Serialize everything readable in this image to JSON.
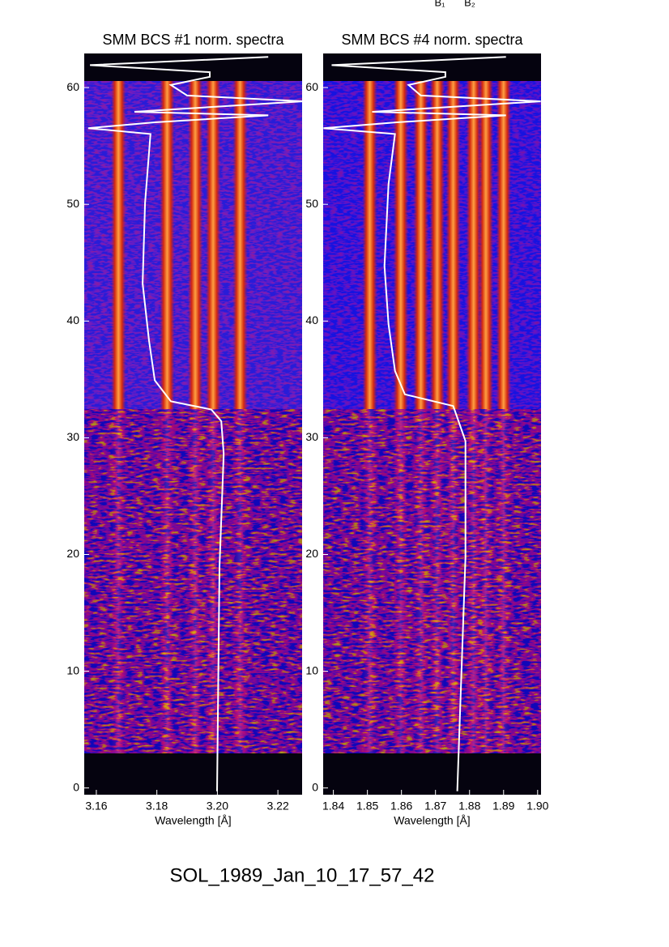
{
  "figure_title": "SOL_1989_Jan_10_17_57_42",
  "annotations": [
    "B₁",
    "B₂"
  ],
  "chart_data": [
    {
      "type": "spectrogram",
      "title": "SMM BCS #1 norm. spectra",
      "x_label": "Wavelength [Å]",
      "xlim": [
        3.156,
        3.228
      ],
      "ylim": [
        -0.3,
        63.2
      ],
      "xticks": [
        3.16,
        3.18,
        {
          "value": 3.2,
          "label": "3.20"
        },
        3.22
      ],
      "yticks": [
        0,
        10,
        20,
        30,
        40,
        50,
        60
      ],
      "spectral_lines": [
        3.1673,
        3.1834,
        3.1927,
        3.1986,
        3.2075
      ],
      "series": [
        {
          "color": "#ffffff",
          "x": [
            3.1999,
            3.2007,
            3.2021,
            3.2013,
            3.198,
            3.1846,
            3.1793,
            3.1774,
            3.1753,
            3.1761,
            3.1779,
            3.1573,
            3.1793,
            3.2168,
            3.1726,
            3.2283,
            3.19,
            3.1846,
            3.1975,
            3.1975,
            3.1579,
            3.2168
          ],
          "y": [
            0,
            19.2,
            28.9,
            31.7,
            32.7,
            33.4,
            35.2,
            38.6,
            43.5,
            50.4,
            56.3,
            56.8,
            57.3,
            57.9,
            58.2,
            59.1,
            59.6,
            60.5,
            61.2,
            61.6,
            62.2,
            62.9
          ]
        }
      ]
    },
    {
      "type": "spectrogram",
      "title": "SMM BCS #4 norm. spectra",
      "x_label": "Wavelength [Å]",
      "xlim": [
        1.837,
        1.901
      ],
      "ylim": [
        -0.3,
        63.2
      ],
      "xticks": [
        1.84,
        1.85,
        1.86,
        1.87,
        1.88,
        1.89,
        {
          "value": 1.9,
          "label": "1.90"
        }
      ],
      "yticks": [
        0,
        10,
        20,
        30,
        40,
        50,
        60
      ],
      "spectral_lines": [
        1.8507,
        1.8598,
        1.8657,
        1.8705,
        1.8752,
        1.8812,
        1.8848,
        1.89
      ],
      "series": [
        {
          "color": "#ffffff",
          "x": [
            1.8764,
            1.8788,
            1.8788,
            1.8752,
            1.861,
            1.8581,
            1.8562,
            1.855,
            1.8562,
            1.8581,
            1.8371,
            1.8586,
            1.8907,
            1.8514,
            1.9009,
            1.8657,
            1.8621,
            1.8729,
            1.8729,
            1.8395,
            1.8907
          ],
          "y": [
            0,
            20,
            30,
            33,
            34,
            36,
            40,
            45,
            52,
            56.3,
            56.8,
            57.3,
            57.9,
            58.2,
            59.1,
            59.6,
            60.5,
            61.2,
            61.6,
            62.2,
            62.9
          ]
        }
      ]
    }
  ]
}
